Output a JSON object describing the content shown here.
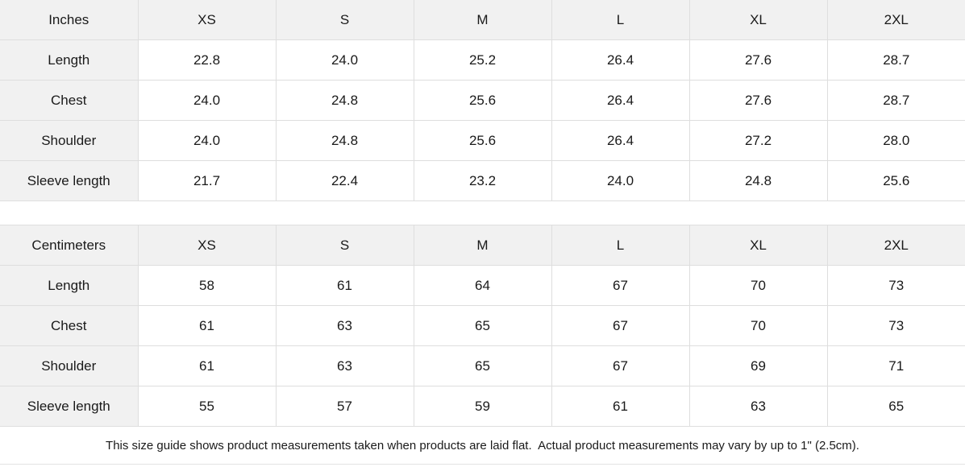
{
  "colors": {
    "header_background": "#f1f1f1",
    "cell_background": "#ffffff",
    "border": "#dedede",
    "text": "#1a1a1a"
  },
  "tables": [
    {
      "unit_label": "Inches",
      "sizes": [
        "XS",
        "S",
        "M",
        "L",
        "XL",
        "2XL"
      ],
      "rows": [
        {
          "label": "Length",
          "values": [
            "22.8",
            "24.0",
            "25.2",
            "26.4",
            "27.6",
            "28.7"
          ]
        },
        {
          "label": "Chest",
          "values": [
            "24.0",
            "24.8",
            "25.6",
            "26.4",
            "27.6",
            "28.7"
          ]
        },
        {
          "label": "Shoulder",
          "values": [
            "24.0",
            "24.8",
            "25.6",
            "26.4",
            "27.2",
            "28.0"
          ]
        },
        {
          "label": "Sleeve length",
          "values": [
            "21.7",
            "22.4",
            "23.2",
            "24.0",
            "24.8",
            "25.6"
          ]
        }
      ]
    },
    {
      "unit_label": "Centimeters",
      "sizes": [
        "XS",
        "S",
        "M",
        "L",
        "XL",
        "2XL"
      ],
      "rows": [
        {
          "label": "Length",
          "values": [
            "58",
            "61",
            "64",
            "67",
            "70",
            "73"
          ]
        },
        {
          "label": "Chest",
          "values": [
            "61",
            "63",
            "65",
            "67",
            "70",
            "73"
          ]
        },
        {
          "label": "Shoulder",
          "values": [
            "61",
            "63",
            "65",
            "67",
            "69",
            "71"
          ]
        },
        {
          "label": "Sleeve length",
          "values": [
            "55",
            "57",
            "59",
            "61",
            "63",
            "65"
          ]
        }
      ]
    }
  ],
  "footer": {
    "note": "This size guide shows product measurements taken when products are laid flat.  Actual product measurements may vary by up to 1\" (2.5cm)."
  }
}
